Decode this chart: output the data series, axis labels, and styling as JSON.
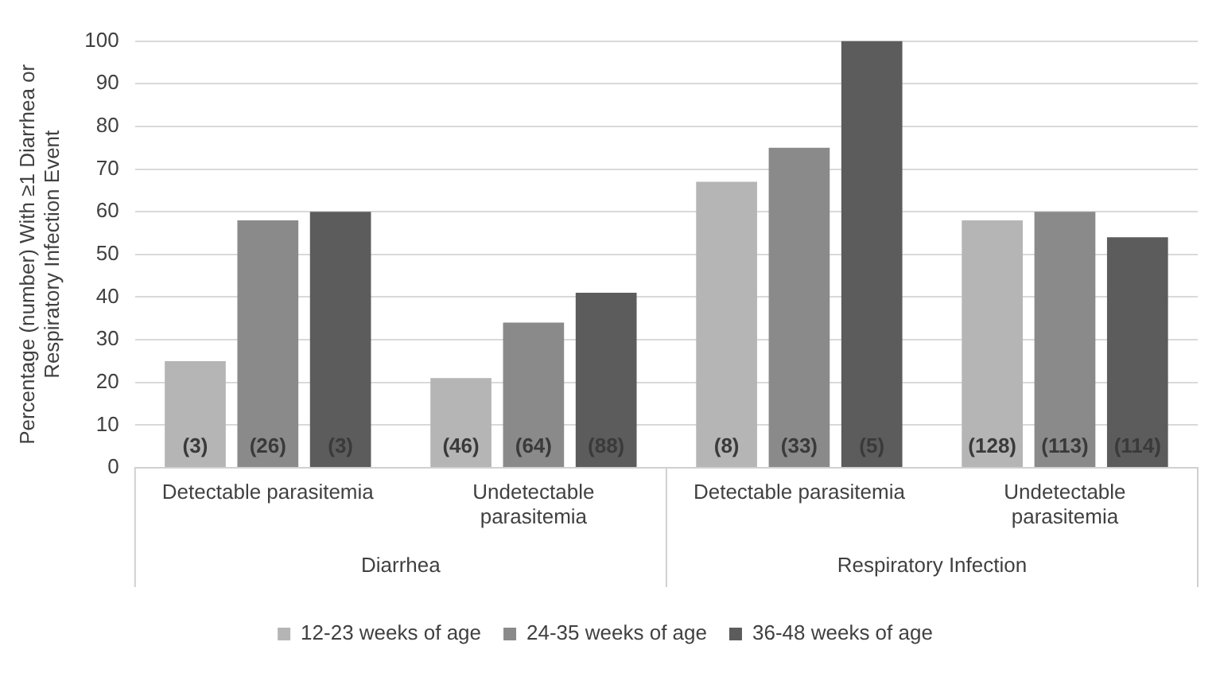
{
  "chart_data": {
    "type": "bar",
    "ylabel": "Percentage (number) With ≥1 Diarrhea or Respiratory Infection Event",
    "categories": [
      "Detectable parasitemia",
      "Undetectable parasitemia",
      "Detectable parasitemia",
      "Undetectable parasitemia"
    ],
    "series": [
      {
        "name": "12-23 weeks of age",
        "color": "#b5b5b5",
        "values": [
          25,
          21,
          67,
          58
        ]
      },
      {
        "name": "24-35 weeks of age",
        "color": "#8a8a8a",
        "values": [
          58,
          34,
          75,
          60
        ]
      },
      {
        "name": "36-48 weeks of age",
        "color": "#5c5c5c",
        "values": [
          60,
          41,
          100,
          54
        ]
      }
    ],
    "annotations": [
      "Diarrhea",
      "Respiratory Infection",
      "(3)",
      "(46)",
      "(8)",
      "(128)",
      "(26)",
      "(64)",
      "(33)",
      "(113)",
      "(3)",
      "(88)",
      "(5)",
      "(114)"
    ],
    "ylim": [
      0,
      100
    ],
    "yticks": [
      0,
      10,
      20,
      30,
      40,
      50,
      60,
      70,
      80,
      90,
      100
    ],
    "grid": "y",
    "legend": "bottom"
  }
}
